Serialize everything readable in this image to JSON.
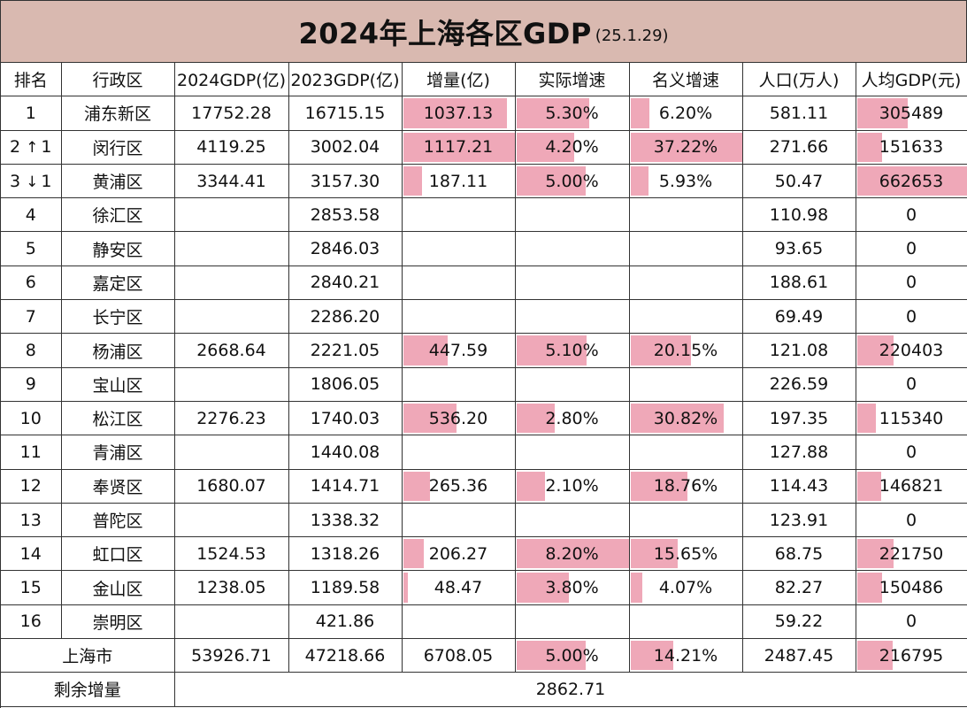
{
  "title": {
    "main": "2024年上海各区GDP",
    "sub": "(25.1.29)"
  },
  "headers": [
    "排名",
    "行政区",
    "2024GDP(亿)",
    "2023GDP(亿)",
    "增量(亿)",
    "实际增速",
    "名义增速",
    "人口(万人)",
    "人均GDP(元)"
  ],
  "rows": [
    {
      "rank": "1",
      "arrow": "",
      "change": "",
      "name": "浦东新区",
      "g24": "17752.28",
      "g23": "16715.15",
      "inc": "1037.13",
      "real": "5.30%",
      "nom": "6.20%",
      "pop": "581.11",
      "pc": "305489"
    },
    {
      "rank": "2",
      "arrow": "↑",
      "change": "1",
      "name": "闵行区",
      "g24": "4119.25",
      "g23": "3002.04",
      "inc": "1117.21",
      "real": "4.20%",
      "nom": "37.22%",
      "pop": "271.66",
      "pc": "151633"
    },
    {
      "rank": "3",
      "arrow": "↓",
      "change": "1",
      "name": "黄浦区",
      "g24": "3344.41",
      "g23": "3157.30",
      "inc": "187.11",
      "real": "5.00%",
      "nom": "5.93%",
      "pop": "50.47",
      "pc": "662653"
    },
    {
      "rank": "4",
      "arrow": "",
      "change": "",
      "name": "徐汇区",
      "g24": "",
      "g23": "2853.58",
      "inc": "",
      "real": "",
      "nom": "",
      "pop": "110.98",
      "pc": "0"
    },
    {
      "rank": "5",
      "arrow": "",
      "change": "",
      "name": "静安区",
      "g24": "",
      "g23": "2846.03",
      "inc": "",
      "real": "",
      "nom": "",
      "pop": "93.65",
      "pc": "0"
    },
    {
      "rank": "6",
      "arrow": "",
      "change": "",
      "name": "嘉定区",
      "g24": "",
      "g23": "2840.21",
      "inc": "",
      "real": "",
      "nom": "",
      "pop": "188.61",
      "pc": "0"
    },
    {
      "rank": "7",
      "arrow": "",
      "change": "",
      "name": "长宁区",
      "g24": "",
      "g23": "2286.20",
      "inc": "",
      "real": "",
      "nom": "",
      "pop": "69.49",
      "pc": "0"
    },
    {
      "rank": "8",
      "arrow": "",
      "change": "",
      "name": "杨浦区",
      "g24": "2668.64",
      "g23": "2221.05",
      "inc": "447.59",
      "real": "5.10%",
      "nom": "20.15%",
      "pop": "121.08",
      "pc": "220403"
    },
    {
      "rank": "9",
      "arrow": "",
      "change": "",
      "name": "宝山区",
      "g24": "",
      "g23": "1806.05",
      "inc": "",
      "real": "",
      "nom": "",
      "pop": "226.59",
      "pc": "0"
    },
    {
      "rank": "10",
      "arrow": "",
      "change": "",
      "name": "松江区",
      "g24": "2276.23",
      "g23": "1740.03",
      "inc": "536.20",
      "real": "2.80%",
      "nom": "30.82%",
      "pop": "197.35",
      "pc": "115340"
    },
    {
      "rank": "11",
      "arrow": "",
      "change": "",
      "name": "青浦区",
      "g24": "",
      "g23": "1440.08",
      "inc": "",
      "real": "",
      "nom": "",
      "pop": "127.88",
      "pc": "0"
    },
    {
      "rank": "12",
      "arrow": "",
      "change": "",
      "name": "奉贤区",
      "g24": "1680.07",
      "g23": "1414.71",
      "inc": "265.36",
      "real": "2.10%",
      "nom": "18.76%",
      "pop": "114.43",
      "pc": "146821"
    },
    {
      "rank": "13",
      "arrow": "",
      "change": "",
      "name": "普陀区",
      "g24": "",
      "g23": "1338.32",
      "inc": "",
      "real": "",
      "nom": "",
      "pop": "123.91",
      "pc": "0"
    },
    {
      "rank": "14",
      "arrow": "",
      "change": "",
      "name": "虹口区",
      "g24": "1524.53",
      "g23": "1318.26",
      "inc": "206.27",
      "real": "8.20%",
      "nom": "15.65%",
      "pop": "68.75",
      "pc": "221750"
    },
    {
      "rank": "15",
      "arrow": "",
      "change": "",
      "name": "金山区",
      "g24": "1238.05",
      "g23": "1189.58",
      "inc": "48.47",
      "real": "3.80%",
      "nom": "4.07%",
      "pop": "82.27",
      "pc": "150486"
    },
    {
      "rank": "16",
      "arrow": "",
      "change": "",
      "name": "崇明区",
      "g24": "",
      "g23": "421.86",
      "inc": "",
      "real": "",
      "nom": "",
      "pop": "59.22",
      "pc": "0"
    }
  ],
  "total": {
    "name": "上海市",
    "g24": "53926.71",
    "g23": "47218.66",
    "inc": "6708.05",
    "real": "5.00%",
    "nom": "14.21%",
    "pop": "2487.45",
    "pc": "216795"
  },
  "remaining": {
    "label": "剩余增量",
    "value": "2862.71"
  },
  "databar_max": {
    "inc": 1117.21,
    "real": 8.2,
    "nom": 37.22,
    "pc": 662653
  },
  "colors": {
    "title_bg": "#d9b9b0",
    "data_bar": "#efa8b8",
    "grid": "#333333"
  }
}
